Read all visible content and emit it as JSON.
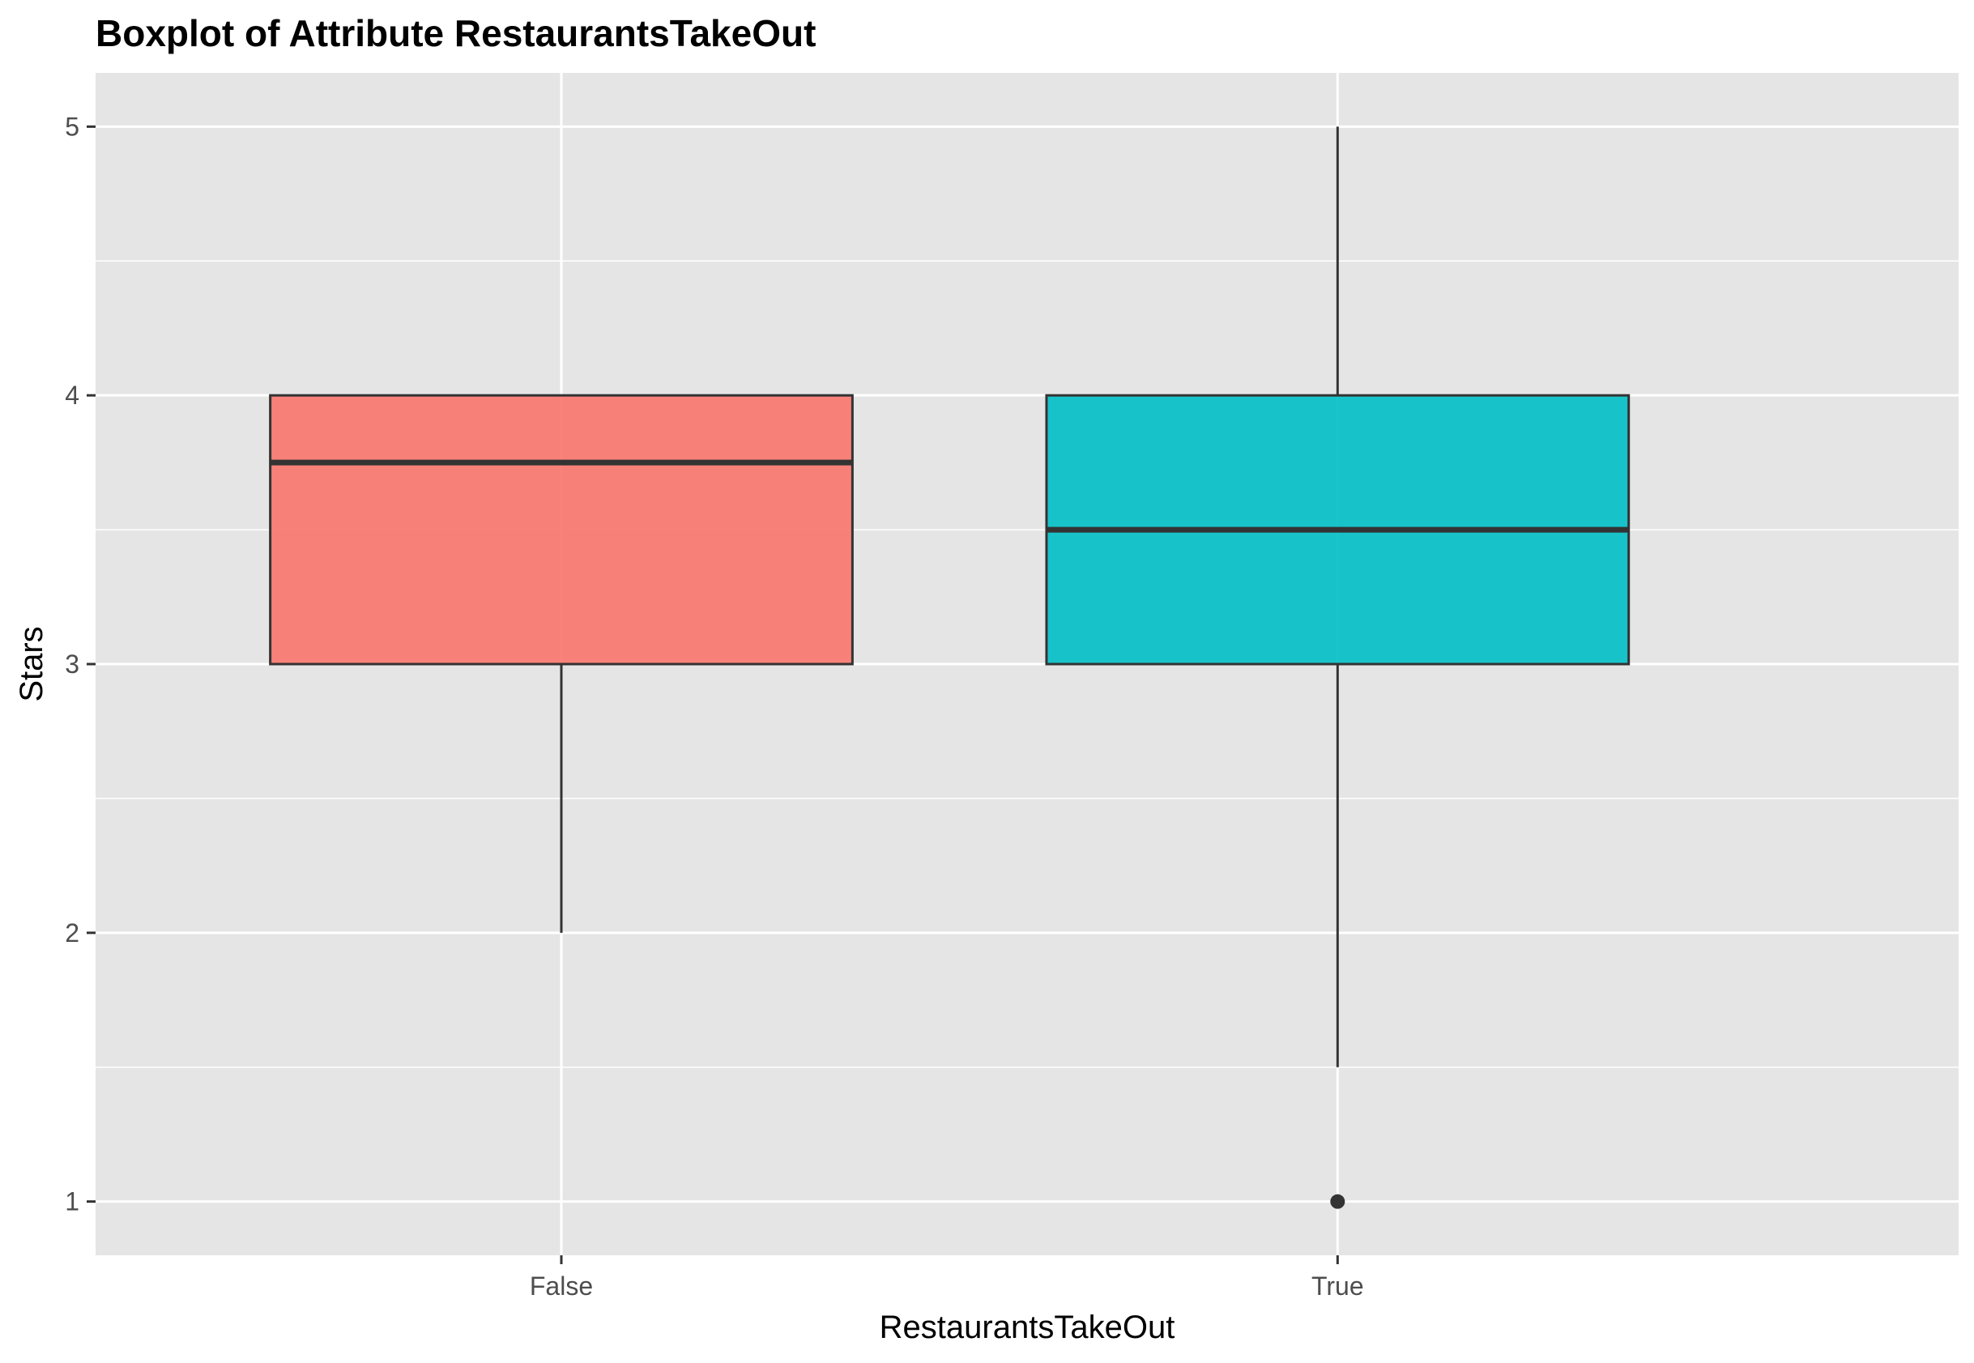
{
  "chart_data": {
    "type": "boxplot",
    "title": "Boxplot of Attribute RestaurantsTakeOut",
    "xlabel": "RestaurantsTakeOut",
    "ylabel": "Stars",
    "categories": [
      "False",
      "True"
    ],
    "ylim": [
      0.8,
      5.2
    ],
    "yticks": [
      1,
      2,
      3,
      4,
      5
    ],
    "grid": true,
    "legend": "none",
    "boxes": [
      {
        "category": "False",
        "whisker_low": 2.0,
        "q1": 3.0,
        "median": 3.75,
        "q3": 4.0,
        "whisker_high": 4.0,
        "outliers": [],
        "color": "#F8766D"
      },
      {
        "category": "True",
        "whisker_low": 1.5,
        "q1": 3.0,
        "median": 3.5,
        "q3": 4.0,
        "whisker_high": 5.0,
        "outliers": [
          1.0
        ],
        "color": "#00BFC4"
      }
    ]
  }
}
